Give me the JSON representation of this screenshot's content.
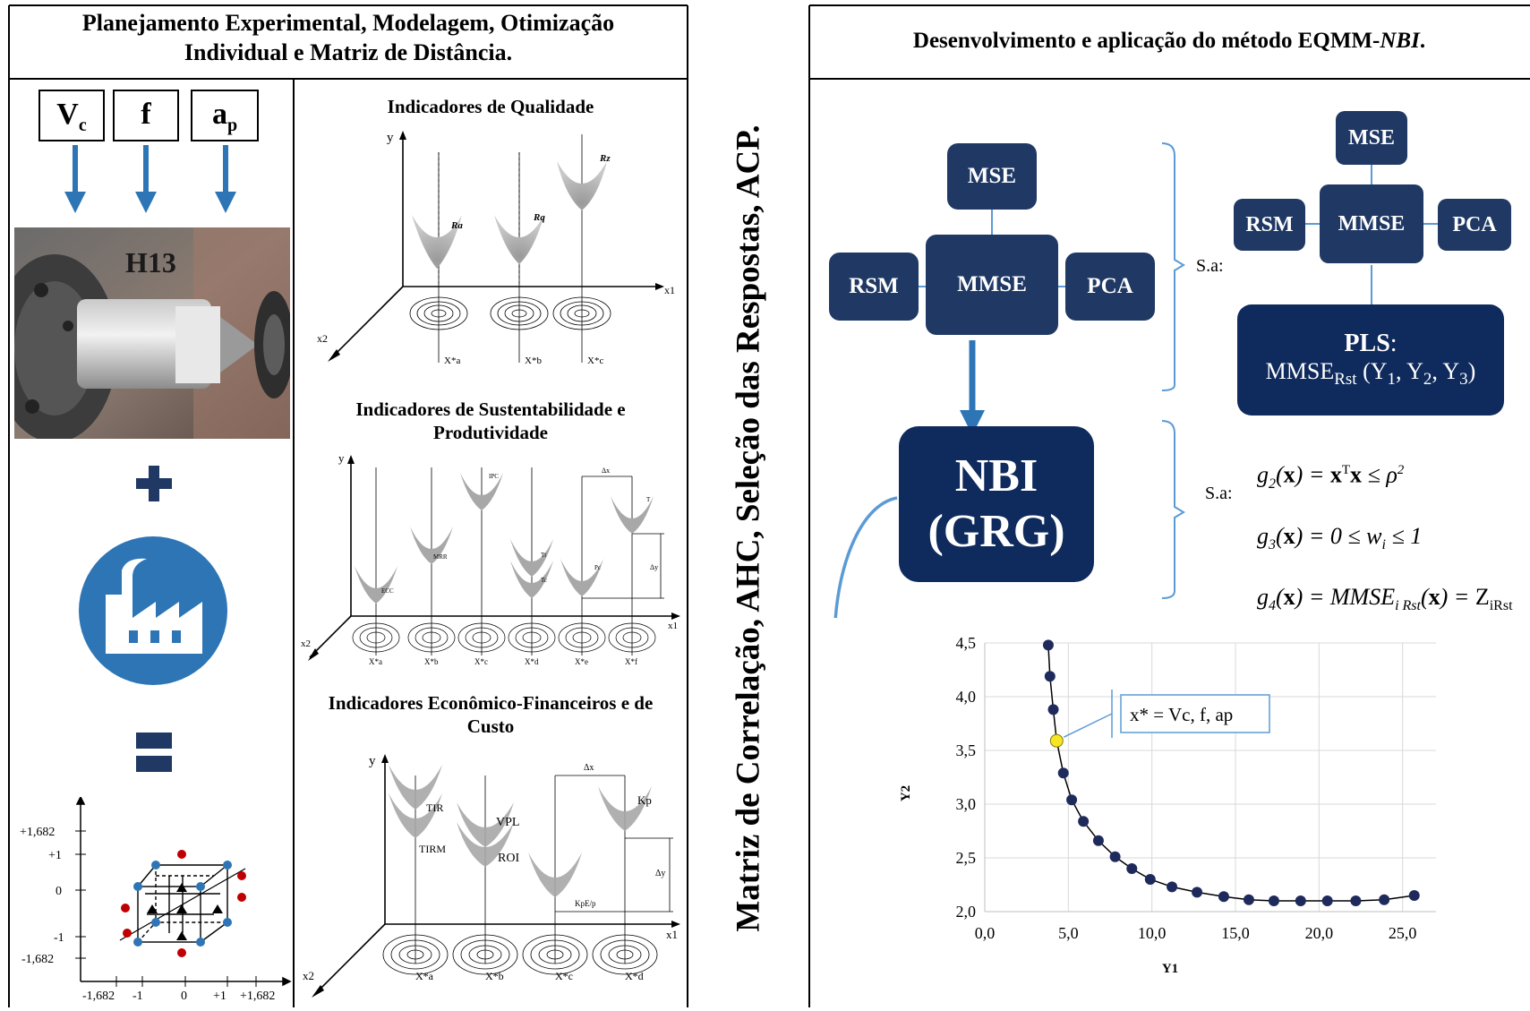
{
  "left_header": {
    "line1": "Planejamento Experimental, Modelagem, Otimização",
    "line2": "Individual e Matriz de Distância."
  },
  "right_header": {
    "text_main": "Desenvolvimento e aplicação do método EQMM-",
    "text_italic": "NBI",
    "text_end": "."
  },
  "vertical_title": "Matriz de Correlação, AHC, Seleção das Respostas, ACP.",
  "factors": {
    "vc": "V",
    "vc_sub": "c",
    "f": "f",
    "ap": "a",
    "ap_sub": "p"
  },
  "photo_label": "H13",
  "plus_icon": "plus-icon",
  "factory_icon": "factory-icon",
  "equals_icon": "equals-icon",
  "ccd": {
    "y_ticks": [
      "+1,682",
      "+1",
      "0",
      "-1",
      "-1,682"
    ],
    "x_ticks": [
      "-1,682",
      "-1",
      "0",
      "+1",
      "+1,682"
    ],
    "point_colors": {
      "factorial": "#2e75b6",
      "axial": "#c00000",
      "center": "#000000"
    }
  },
  "quality": {
    "title": "Indicadores de Qualidade",
    "axis_y": "y",
    "axis_x": "x1",
    "axis_z": "x2",
    "curves": [
      "Ra",
      "Rq",
      "Rz"
    ],
    "opt_labels": [
      "X*a",
      "X*b",
      "X*c"
    ]
  },
  "sustain": {
    "title_line1": "Indicadores de Sustentabilidade e",
    "title_line2": "Produtividade",
    "axis_y": "y",
    "axis_x": "x1",
    "axis_z": "x2",
    "curves": [
      "ECC",
      "MRR",
      "IPC",
      "Tt",
      "Tc",
      "Pc",
      "T"
    ],
    "dx": "Δx",
    "dy": "Δy",
    "opt_labels": [
      "X*a",
      "X*b",
      "X*c",
      "X*d",
      "X*e",
      "X*f"
    ]
  },
  "econ": {
    "title_line1": "Indicadores Econômico-Financeiros e de",
    "title_line2": "Custo",
    "axis_y": "y",
    "axis_x": "x1",
    "axis_z": "x2",
    "curves": [
      "TIR",
      "TIRM",
      "VPL",
      "ROI",
      "KpE/p",
      "Kp"
    ],
    "dx": "Δx",
    "dy": "Δy",
    "opt_labels": [
      "X*a",
      "X*b",
      "X*c",
      "X*d"
    ]
  },
  "flow": {
    "mse": "MSE",
    "rsm": "RSM",
    "mmse": "MMSE",
    "pca": "PCA",
    "nbi_line1": "NBI",
    "nbi_line2": "(GRG)",
    "sa": "S.a:",
    "pls_title": "PLS",
    "pls_colon": ":",
    "pls_formula_a": "MMSE",
    "pls_formula_sub": "Rst",
    "pls_formula_b": " (Y",
    "pls_formula_c": ", Y",
    "pls_formula_d": ", Y",
    "pls_formula_e": ")",
    "pls_idx": [
      "1",
      "2",
      "3"
    ],
    "constraints": {
      "g2": "g2(x) = xᵀx ≤ ρ²",
      "g3": "g3(x) = 0 ≤ wi ≤ 1",
      "g4": "g4(x) = MMSEiRst(x) = ZiRst"
    },
    "colors": {
      "box": "#1f3864",
      "nbi": "#0f2a5c",
      "arrow": "#2e75b6"
    }
  },
  "chart_data": {
    "type": "scatter",
    "title": "",
    "xlabel": "Y1",
    "ylabel": "Y2",
    "xlim": [
      0,
      27
    ],
    "ylim": [
      2.0,
      4.5
    ],
    "x_ticks": [
      "0,0",
      "5,0",
      "10,0",
      "15,0",
      "20,0",
      "25,0"
    ],
    "y_ticks": [
      "2,0",
      "2,5",
      "3,0",
      "3,5",
      "4,0",
      "4,5"
    ],
    "grid": true,
    "series": [
      {
        "x": [
          3.8,
          3.9,
          4.1,
          4.3,
          4.7,
          5.2,
          5.9,
          6.8,
          7.8,
          8.8,
          9.9,
          11.2,
          12.7,
          14.3,
          15.8,
          17.3,
          18.9,
          20.5,
          22.2,
          23.9,
          25.7
        ],
        "y": [
          4.48,
          4.19,
          3.88,
          3.59,
          3.29,
          3.04,
          2.84,
          2.66,
          2.51,
          2.4,
          2.3,
          2.23,
          2.18,
          2.14,
          2.11,
          2.1,
          2.1,
          2.1,
          2.1,
          2.11,
          2.15
        ]
      }
    ],
    "highlight_index": 3,
    "colors": {
      "points": "#1f2a5c",
      "highlight": "#f5e625",
      "line": "#000000"
    },
    "annotation": "x* = Vc, f, ap"
  }
}
